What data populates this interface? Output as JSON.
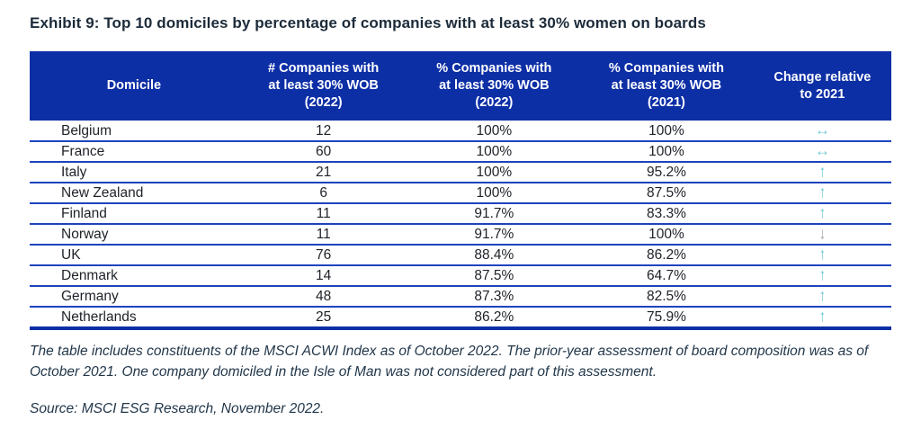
{
  "title": "Exhibit 9: Top 10 domiciles by percentage of companies with at least 30% women on boards",
  "chart_data": {
    "type": "table",
    "title": "Top 10 domiciles by percentage of companies with at least 30% women on boards",
    "columns": [
      "Domicile",
      "# Companies with\nat least 30% WOB\n(2022)",
      "% Companies with\nat least 30% WOB\n(2022)",
      "% Companies with\nat least 30% WOB\n(2021)",
      "Change relative\nto 2021"
    ],
    "rows": [
      {
        "domicile": "Belgium",
        "companies_2022": "12",
        "pct_2022": "100%",
        "pct_2021": "100%",
        "change_direction": "unchanged",
        "change_icon": "↔"
      },
      {
        "domicile": "France",
        "companies_2022": "60",
        "pct_2022": "100%",
        "pct_2021": "100%",
        "change_direction": "unchanged",
        "change_icon": "↔"
      },
      {
        "domicile": "Italy",
        "companies_2022": "21",
        "pct_2022": "100%",
        "pct_2021": "95.2%",
        "change_direction": "up",
        "change_icon": "↑"
      },
      {
        "domicile": "New Zealand",
        "companies_2022": "6",
        "pct_2022": "100%",
        "pct_2021": "87.5%",
        "change_direction": "up",
        "change_icon": "↑"
      },
      {
        "domicile": "Finland",
        "companies_2022": "11",
        "pct_2022": "91.7%",
        "pct_2021": "83.3%",
        "change_direction": "up",
        "change_icon": "↑"
      },
      {
        "domicile": "Norway",
        "companies_2022": "11",
        "pct_2022": "91.7%",
        "pct_2021": "100%",
        "change_direction": "down",
        "change_icon": "↓"
      },
      {
        "domicile": "UK",
        "companies_2022": "76",
        "pct_2022": "88.4%",
        "pct_2021": "86.2%",
        "change_direction": "up",
        "change_icon": "↑"
      },
      {
        "domicile": "Denmark",
        "companies_2022": "14",
        "pct_2022": "87.5%",
        "pct_2021": "64.7%",
        "change_direction": "up",
        "change_icon": "↑"
      },
      {
        "domicile": "Germany",
        "companies_2022": "48",
        "pct_2022": "87.3%",
        "pct_2021": "82.5%",
        "change_direction": "up",
        "change_icon": "↑"
      },
      {
        "domicile": "Netherlands",
        "companies_2022": "25",
        "pct_2022": "86.2%",
        "pct_2021": "75.9%",
        "change_direction": "up",
        "change_icon": "↑"
      }
    ]
  },
  "notes": {
    "body": "The table includes constituents of the MSCI ACWI Index as of October 2022. The prior-year assessment of board composition was as of October 2021. One company domiciled in the Isle of Man was not considered part of this assessment.",
    "source": "Source: MSCI ESG Research, November 2022."
  },
  "colors": {
    "header_background": "#0D2FA6",
    "header_text": "#FFFFFF",
    "row_divider": "#1D43BD",
    "table_bottom_border": "#0D2FA6",
    "title_text": "#1C2B3A",
    "cell_text": "#1E2228",
    "note_text": "#22374A",
    "arrow_teal": "#72C9D6",
    "arrow_gray": "#A9A9A9"
  }
}
